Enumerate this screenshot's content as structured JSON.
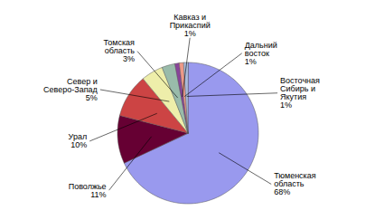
{
  "chart_data": {
    "type": "pie",
    "categories": [
      "Тюменская\nобласть\n68%",
      "Поволжье\n11%",
      "Урал\n10%",
      "Север и\nСеверо-Запад\n5%",
      "Томская\nобласть\n3%",
      "Кавказ и\nПрикаспий\n1%",
      "Дальний\nвосток\n1%",
      "Восточная\nСибирь и\nЯкутия\n1%"
    ],
    "values": [
      68,
      11,
      10,
      5,
      3,
      1,
      1,
      1
    ],
    "colors": [
      "#9999ee",
      "#660033",
      "#cc4444",
      "#eeeeaa",
      "#99bbaa",
      "#884499",
      "#ee9988",
      "#aabbdd"
    ]
  }
}
